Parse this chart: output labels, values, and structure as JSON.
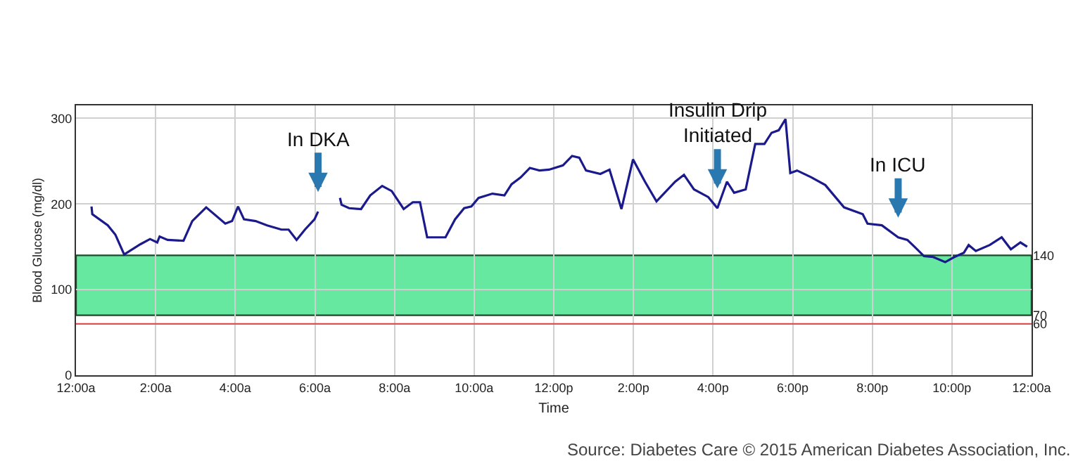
{
  "chart_data": {
    "type": "line",
    "xlabel": "Time",
    "ylabel": "Blood Glucose (mg/dl)",
    "x": [
      0.39,
      0.41,
      0.8,
      0.99,
      1.21,
      1.62,
      1.86,
      2.04,
      2.1,
      2.3,
      2.7,
      2.92,
      3.27,
      3.75,
      3.92,
      4.07,
      4.22,
      4.51,
      4.8,
      5.16,
      5.34,
      5.54,
      5.75,
      5.99,
      6.08,
      6.3,
      6.63,
      6.67,
      6.86,
      7.16,
      7.39,
      7.69,
      7.93,
      8.23,
      8.46,
      8.64,
      8.82,
      9.05,
      9.28,
      9.52,
      9.75,
      9.93,
      10.11,
      10.46,
      10.76,
      10.94,
      11.17,
      11.4,
      11.64,
      11.88,
      12.23,
      12.46,
      12.64,
      12.81,
      13.17,
      13.4,
      13.7,
      13.99,
      14.29,
      14.58,
      15.05,
      15.27,
      15.52,
      15.88,
      16.11,
      16.35,
      16.53,
      16.82,
      17.06,
      17.29,
      17.47,
      17.65,
      17.82,
      17.94,
      18.11,
      18.47,
      18.82,
      19.29,
      19.76,
      19.88,
      20.24,
      20.65,
      20.88,
      21.06,
      21.3,
      21.53,
      21.83,
      22.06,
      22.3,
      22.42,
      22.6,
      22.95,
      23.25,
      23.48,
      23.72,
      23.89
    ],
    "series": [
      {
        "color": "#1a1a8c",
        "values": [
          197,
          188,
          175,
          164,
          141,
          153,
          159,
          155,
          162,
          158,
          157,
          180,
          196,
          177,
          180,
          197,
          182,
          180,
          175,
          170,
          170,
          158,
          170,
          182,
          191,
          null,
          207,
          199,
          195,
          194,
          210,
          221,
          215,
          194,
          202,
          202,
          161,
          161,
          161,
          182,
          195,
          197,
          207,
          212,
          210,
          223,
          231,
          242,
          239,
          240,
          245,
          256,
          254,
          239,
          235,
          240,
          194,
          252,
          226,
          203,
          226,
          234,
          217,
          208,
          195,
          226,
          213,
          217,
          270,
          270,
          283,
          286,
          299,
          236,
          239,
          231,
          222,
          196,
          188,
          177,
          175,
          161,
          158,
          150,
          139,
          138,
          132,
          138,
          143,
          152,
          145,
          152,
          161,
          147,
          155,
          150
        ]
      }
    ],
    "xlim": [
      0,
      24
    ],
    "xticks": [
      {
        "value": 0,
        "label": "12:00a"
      },
      {
        "value": 2,
        "label": "2:00a"
      },
      {
        "value": 4,
        "label": "4:00a"
      },
      {
        "value": 6,
        "label": "6:00a"
      },
      {
        "value": 8,
        "label": "8:00a"
      },
      {
        "value": 10,
        "label": "10:00a"
      },
      {
        "value": 12,
        "label": "12:00p"
      },
      {
        "value": 14,
        "label": "2:00p"
      },
      {
        "value": 16,
        "label": "4:00p"
      },
      {
        "value": 18,
        "label": "6:00p"
      },
      {
        "value": 20,
        "label": "8:00p"
      },
      {
        "value": 22,
        "label": "10:00p"
      },
      {
        "value": 24,
        "label": "12:00a"
      }
    ],
    "ylim": [
      0,
      315
    ],
    "yticks": [
      0,
      100,
      200,
      300
    ],
    "y2lim": [
      0,
      315
    ],
    "y2ticks": [
      60,
      70,
      140
    ],
    "bands": [
      {
        "axis": "y",
        "from": 70,
        "to": 140,
        "color": "#66e8a0"
      }
    ],
    "ref_lines": [
      {
        "axis": "y",
        "value": 60,
        "color": "#e05050"
      }
    ],
    "annotations": [
      {
        "text": "In DKA",
        "x": 6.08,
        "y": 191
      },
      {
        "text": "Insulin Drip\nInitiated",
        "x": 16.11,
        "y": 195
      },
      {
        "text": "In ICU",
        "x": 20.65,
        "y": 161
      },
      "Source: Diabetes Care © 2015 American Diabetes Association, Inc."
    ],
    "grid": true,
    "marker": "none",
    "line_style": "solid"
  }
}
